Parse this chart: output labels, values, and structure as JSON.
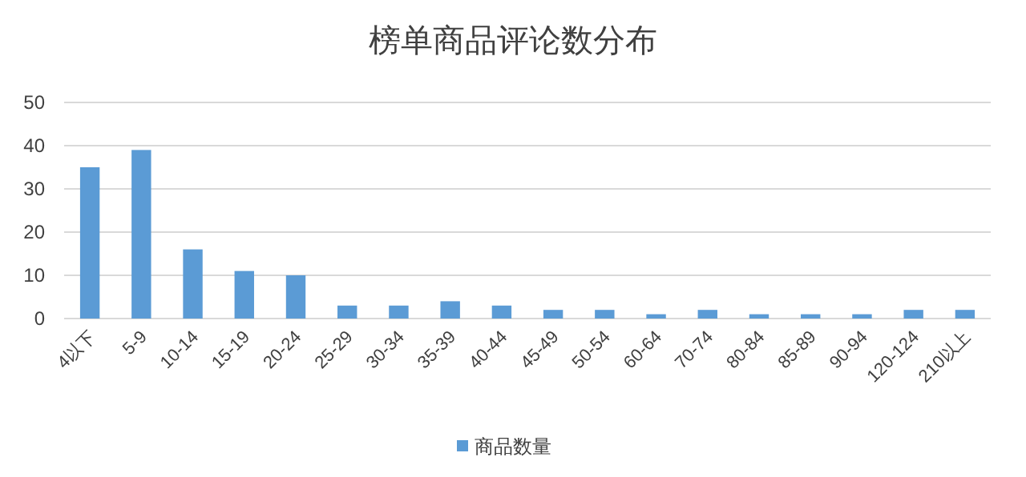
{
  "chart_data": {
    "type": "bar",
    "title": "榜单商品评论数分布",
    "categories": [
      "4以下",
      "5-9",
      "10-14",
      "15-19",
      "20-24",
      "25-29",
      "30-34",
      "35-39",
      "40-44",
      "45-49",
      "50-54",
      "60-64",
      "70-74",
      "80-84",
      "85-89",
      "90-94",
      "120-124",
      "210以上"
    ],
    "series": [
      {
        "name": "商品数量",
        "color": "#5b9bd5",
        "values": [
          35,
          39,
          16,
          11,
          10,
          3,
          3,
          4,
          3,
          2,
          2,
          1,
          2,
          1,
          1,
          1,
          2,
          2
        ]
      }
    ],
    "ylim": [
      0,
      50
    ],
    "yticks": [
      0,
      10,
      20,
      30,
      40,
      50
    ],
    "grid": "y",
    "legend": "bottom"
  }
}
